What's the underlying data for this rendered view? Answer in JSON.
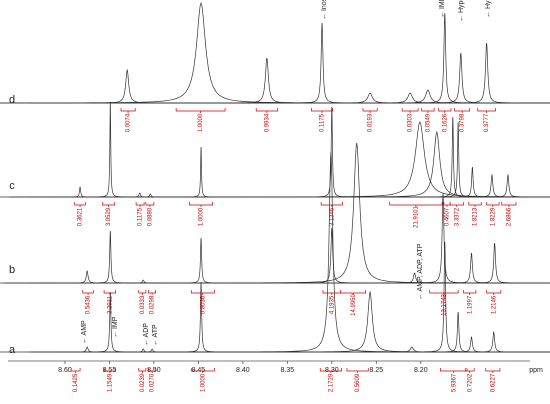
{
  "chart_data": {
    "type": "nmr-stack",
    "x_label": "ppm",
    "xlim": [
      8.664,
      8.057
    ],
    "xticks": [
      {
        "value": 8.6,
        "label": "8.60"
      },
      {
        "value": 8.55,
        "label": "8.55"
      },
      {
        "value": 8.5,
        "label": "8.50"
      },
      {
        "value": 8.45,
        "label": "8.45"
      },
      {
        "value": 8.4,
        "label": "8.40"
      },
      {
        "value": 8.35,
        "label": "8.35"
      },
      {
        "value": 8.3,
        "label": "8.30"
      },
      {
        "value": 8.25,
        "label": "8.25"
      },
      {
        "value": 8.2,
        "label": "8.20"
      }
    ],
    "line_color": "#333",
    "integral_color": "#cc0000",
    "series": [
      {
        "name": "a",
        "peaks": [
          {
            "ppm": 8.575,
            "height": 5,
            "width": 0.0012
          },
          {
            "ppm": 8.549,
            "height": 60,
            "width": 0.0008
          },
          {
            "ppm": 8.512,
            "height": 3,
            "width": 0.001
          },
          {
            "ppm": 8.502,
            "height": 3,
            "width": 0.001
          },
          {
            "ppm": 8.447,
            "height": 70,
            "width": 0.0008
          },
          {
            "ppm": 8.301,
            "height": 200,
            "width": 0.0025
          },
          {
            "ppm": 8.257,
            "height": 60,
            "width": 0.003
          },
          {
            "ppm": 8.21,
            "height": 5,
            "width": 0.002
          },
          {
            "ppm": 8.173,
            "height": 110,
            "width": 0.001
          },
          {
            "ppm": 8.158,
            "height": 40,
            "width": 0.001
          },
          {
            "ppm": 8.143,
            "height": 15,
            "width": 0.0012
          },
          {
            "ppm": 8.118,
            "height": 20,
            "width": 0.0012
          }
        ],
        "integrals": [
          {
            "label": "0.1425",
            "from": 8.593,
            "to": 8.583
          },
          {
            "label": "1.1549",
            "from": 8.556,
            "to": 8.543
          },
          {
            "label": "0.0239",
            "from": 8.517,
            "to": 8.509
          },
          {
            "label": "0.0270",
            "from": 8.506,
            "to": 8.498
          },
          {
            "label": "1.0000",
            "from": 8.458,
            "to": 8.432
          },
          {
            "label": "2.1729",
            "from": 8.313,
            "to": 8.289
          },
          {
            "label": "0.5609",
            "from": 8.283,
            "to": 8.259
          },
          {
            "label": "5.9367",
            "from": 8.178,
            "to": 8.148
          },
          {
            "label": "0.7202",
            "from": 8.15,
            "to": 8.14
          },
          {
            "label": "0.6227",
            "from": 8.127,
            "to": 8.111
          }
        ],
        "annotations": [
          "← AMP",
          "← IMP",
          "← ADP",
          "← ATP",
          "← AMP, ADP, ATP"
        ]
      },
      {
        "name": "b",
        "peaks": [
          {
            "ppm": 8.575,
            "height": 12,
            "width": 0.0012
          },
          {
            "ppm": 8.549,
            "height": 52,
            "width": 0.0008
          },
          {
            "ppm": 8.512,
            "height": 3,
            "width": 0.001
          },
          {
            "ppm": 8.447,
            "height": 45,
            "width": 0.0008
          },
          {
            "ppm": 8.3,
            "height": 55,
            "width": 0.0012
          },
          {
            "ppm": 8.272,
            "height": 140,
            "width": 0.004
          },
          {
            "ppm": 8.207,
            "height": 10,
            "width": 0.0015
          },
          {
            "ppm": 8.175,
            "height": 90,
            "width": 0.0012
          },
          {
            "ppm": 8.143,
            "height": 30,
            "width": 0.0012
          },
          {
            "ppm": 8.117,
            "height": 40,
            "width": 0.0012
          }
        ],
        "integrals": [
          {
            "label": "0.5436",
            "from": 8.58,
            "to": 8.568
          },
          {
            "label": "2.2911",
            "from": 8.556,
            "to": 8.543
          },
          {
            "label": "0.0333",
            "from": 8.517,
            "to": 8.509
          },
          {
            "label": "0.0298",
            "from": 8.506,
            "to": 8.498
          },
          {
            "label": "0.8036",
            "from": 8.458,
            "to": 8.432
          },
          {
            "label": "4.1935",
            "from": 8.31,
            "to": 8.29
          },
          {
            "label": "14.9950",
            "from": 8.29,
            "to": 8.262
          },
          {
            "label": "13.1743",
            "from": 8.19,
            "to": 8.158
          },
          {
            "label": "1.1997",
            "from": 8.152,
            "to": 8.138
          },
          {
            "label": "1.2146",
            "from": 8.126,
            "to": 8.11
          }
        ],
        "annotations": []
      },
      {
        "name": "c",
        "peaks": [
          {
            "ppm": 8.583,
            "height": 10,
            "width": 0.0008
          },
          {
            "ppm": 8.549,
            "height": 95,
            "width": 0.0006
          },
          {
            "ppm": 8.516,
            "height": 4,
            "width": 0.001
          },
          {
            "ppm": 8.504,
            "height": 3,
            "width": 0.001
          },
          {
            "ppm": 8.447,
            "height": 50,
            "width": 0.0006
          },
          {
            "ppm": 8.3,
            "height": 90,
            "width": 0.0008
          },
          {
            "ppm": 8.201,
            "height": 75,
            "width": 0.006
          },
          {
            "ppm": 8.182,
            "height": 65,
            "width": 0.004
          },
          {
            "ppm": 8.164,
            "height": 80,
            "width": 0.0008
          },
          {
            "ppm": 8.158,
            "height": 75,
            "width": 0.0008
          },
          {
            "ppm": 8.142,
            "height": 30,
            "width": 0.001
          },
          {
            "ppm": 8.12,
            "height": 22,
            "width": 0.0012
          },
          {
            "ppm": 8.102,
            "height": 22,
            "width": 0.0012
          }
        ],
        "integrals": [
          {
            "label": "0.3621",
            "from": 8.589,
            "to": 8.577
          },
          {
            "label": "3.0529",
            "from": 8.558,
            "to": 8.544
          },
          {
            "label": "0.1175",
            "from": 8.52,
            "to": 8.511
          },
          {
            "label": "0.0880",
            "from": 8.509,
            "to": 8.5
          },
          {
            "label": "1.0000",
            "from": 8.46,
            "to": 8.434
          },
          {
            "label": "3.1346",
            "from": 8.312,
            "to": 8.288
          },
          {
            "label": "21.9101",
            "from": 8.235,
            "to": 8.176
          },
          {
            "label": "0.4607",
            "from": 8.174,
            "to": 8.167
          },
          {
            "label": "3.3372",
            "from": 8.167,
            "to": 8.152
          },
          {
            "label": "1.8213",
            "from": 8.146,
            "to": 8.132
          },
          {
            "label": "1.8229",
            "from": 8.126,
            "to": 8.112
          },
          {
            "label": "2.6866",
            "from": 8.109,
            "to": 8.093
          }
        ],
        "annotations": []
      },
      {
        "name": "d",
        "peaks": [
          {
            "ppm": 8.53,
            "height": 33,
            "width": 0.002
          },
          {
            "ppm": 8.447,
            "height": 100,
            "width": 0.006
          },
          {
            "ppm": 8.373,
            "height": 45,
            "width": 0.002
          },
          {
            "ppm": 8.311,
            "height": 80,
            "width": 0.0012
          },
          {
            "ppm": 8.257,
            "height": 10,
            "width": 0.003
          },
          {
            "ppm": 8.212,
            "height": 10,
            "width": 0.003
          },
          {
            "ppm": 8.192,
            "height": 13,
            "width": 0.003
          },
          {
            "ppm": 8.173,
            "height": 90,
            "width": 0.0012
          },
          {
            "ppm": 8.155,
            "height": 50,
            "width": 0.0015
          },
          {
            "ppm": 8.126,
            "height": 60,
            "width": 0.0015
          }
        ],
        "integrals": [
          {
            "label": "0.0074",
            "from": 8.537,
            "to": 8.521
          },
          {
            "label": "1.0000",
            "from": 8.475,
            "to": 8.42
          },
          {
            "label": "0.9934",
            "from": 8.385,
            "to": 8.361
          },
          {
            "label": "0.1175",
            "from": 8.323,
            "to": 8.299
          },
          {
            "label": "0.0193",
            "from": 8.265,
            "to": 8.249
          },
          {
            "label": "0.0303",
            "from": 8.221,
            "to": 8.203
          },
          {
            "label": "0.0549",
            "from": 8.199,
            "to": 8.185
          },
          {
            "label": "0.1626",
            "from": 8.18,
            "to": 8.166
          },
          {
            "label": "0.3798",
            "from": 8.162,
            "to": 8.145
          },
          {
            "label": "0.3777",
            "from": 8.136,
            "to": 8.116
          }
        ],
        "annotations": [
          "← Inosine",
          "← IMP, Inosine",
          "← Hypoxanthine",
          "← Hypoxanthine"
        ]
      }
    ]
  }
}
